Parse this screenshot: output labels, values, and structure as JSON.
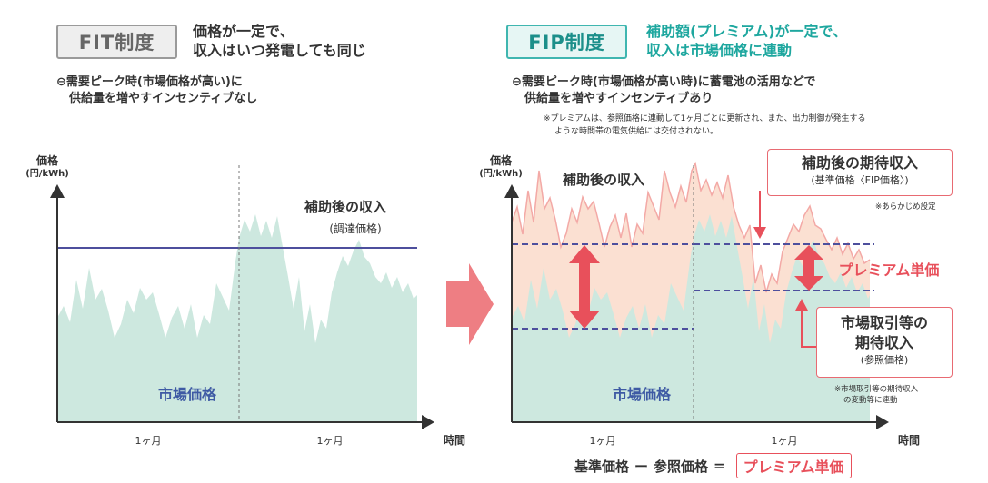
{
  "fit": {
    "badge": "FIT制度",
    "headline_line1": "価格が一定で、",
    "headline_line2": "収入はいつ発電しても同じ",
    "note_line1": "⊖需要ピーク時(市場価格が高い)に",
    "note_line2": "供給量を増やすインセンティブなし",
    "y_label_line1": "価格",
    "y_label_line2": "(円/kWh)",
    "revenue_label": "補助後の収入",
    "revenue_sub": "(調達価格)",
    "market_label": "市場価格",
    "month1": "1ヶ月",
    "month2": "1ヶ月",
    "x_label": "時間"
  },
  "fip": {
    "badge": "FIP制度",
    "headline_line1": "補助額(プレミアム)が一定で、",
    "headline_line2": "収入は市場価格に連動",
    "note_line1": "⊖需要ピーク時(市場価格が高い時)に蓄電池の活用などで",
    "note_line2": "供給量を増やすインセンティブあり",
    "fineprint_line1": "※プレミアムは、参照価格に連動して1ヶ月ごとに更新され、また、出力制御が発生する",
    "fineprint_line2": "ような時間帯の電気供給には交付されない。",
    "y_label_line1": "価格",
    "y_label_line2": "(円/kWh)",
    "revenue_label": "補助後の収入",
    "expected_title": "補助後の期待収入",
    "expected_sub": "(基準価格〈FIP価格〉)",
    "preset_note": "※あらかじめ設定",
    "premium_label": "プレミアム単価",
    "market_expected_line1": "市場取引等の",
    "market_expected_line2": "期待収入",
    "market_expected_sub": "(参照価格)",
    "market_note_line1": "※市場取引等の期待収入",
    "market_note_line2": "の変動等に連動",
    "market_label": "市場価格",
    "month1": "1ヶ月",
    "month2": "1ヶ月",
    "x_label": "時間"
  },
  "formula": {
    "base": "基準価格",
    "minus": "ー",
    "reference": "参照価格",
    "equals": "=",
    "result": "プレミアム単価"
  },
  "colors": {
    "market_fill": "#cde8df",
    "premium_fill": "#fbe0d2",
    "fixed_line": "#4d4f9d",
    "accent_red": "#e8505b",
    "fip_teal": "#1ea79f"
  },
  "icons": {
    "transition": "right-arrow-icon",
    "premium": "double-arrow-icon"
  }
}
